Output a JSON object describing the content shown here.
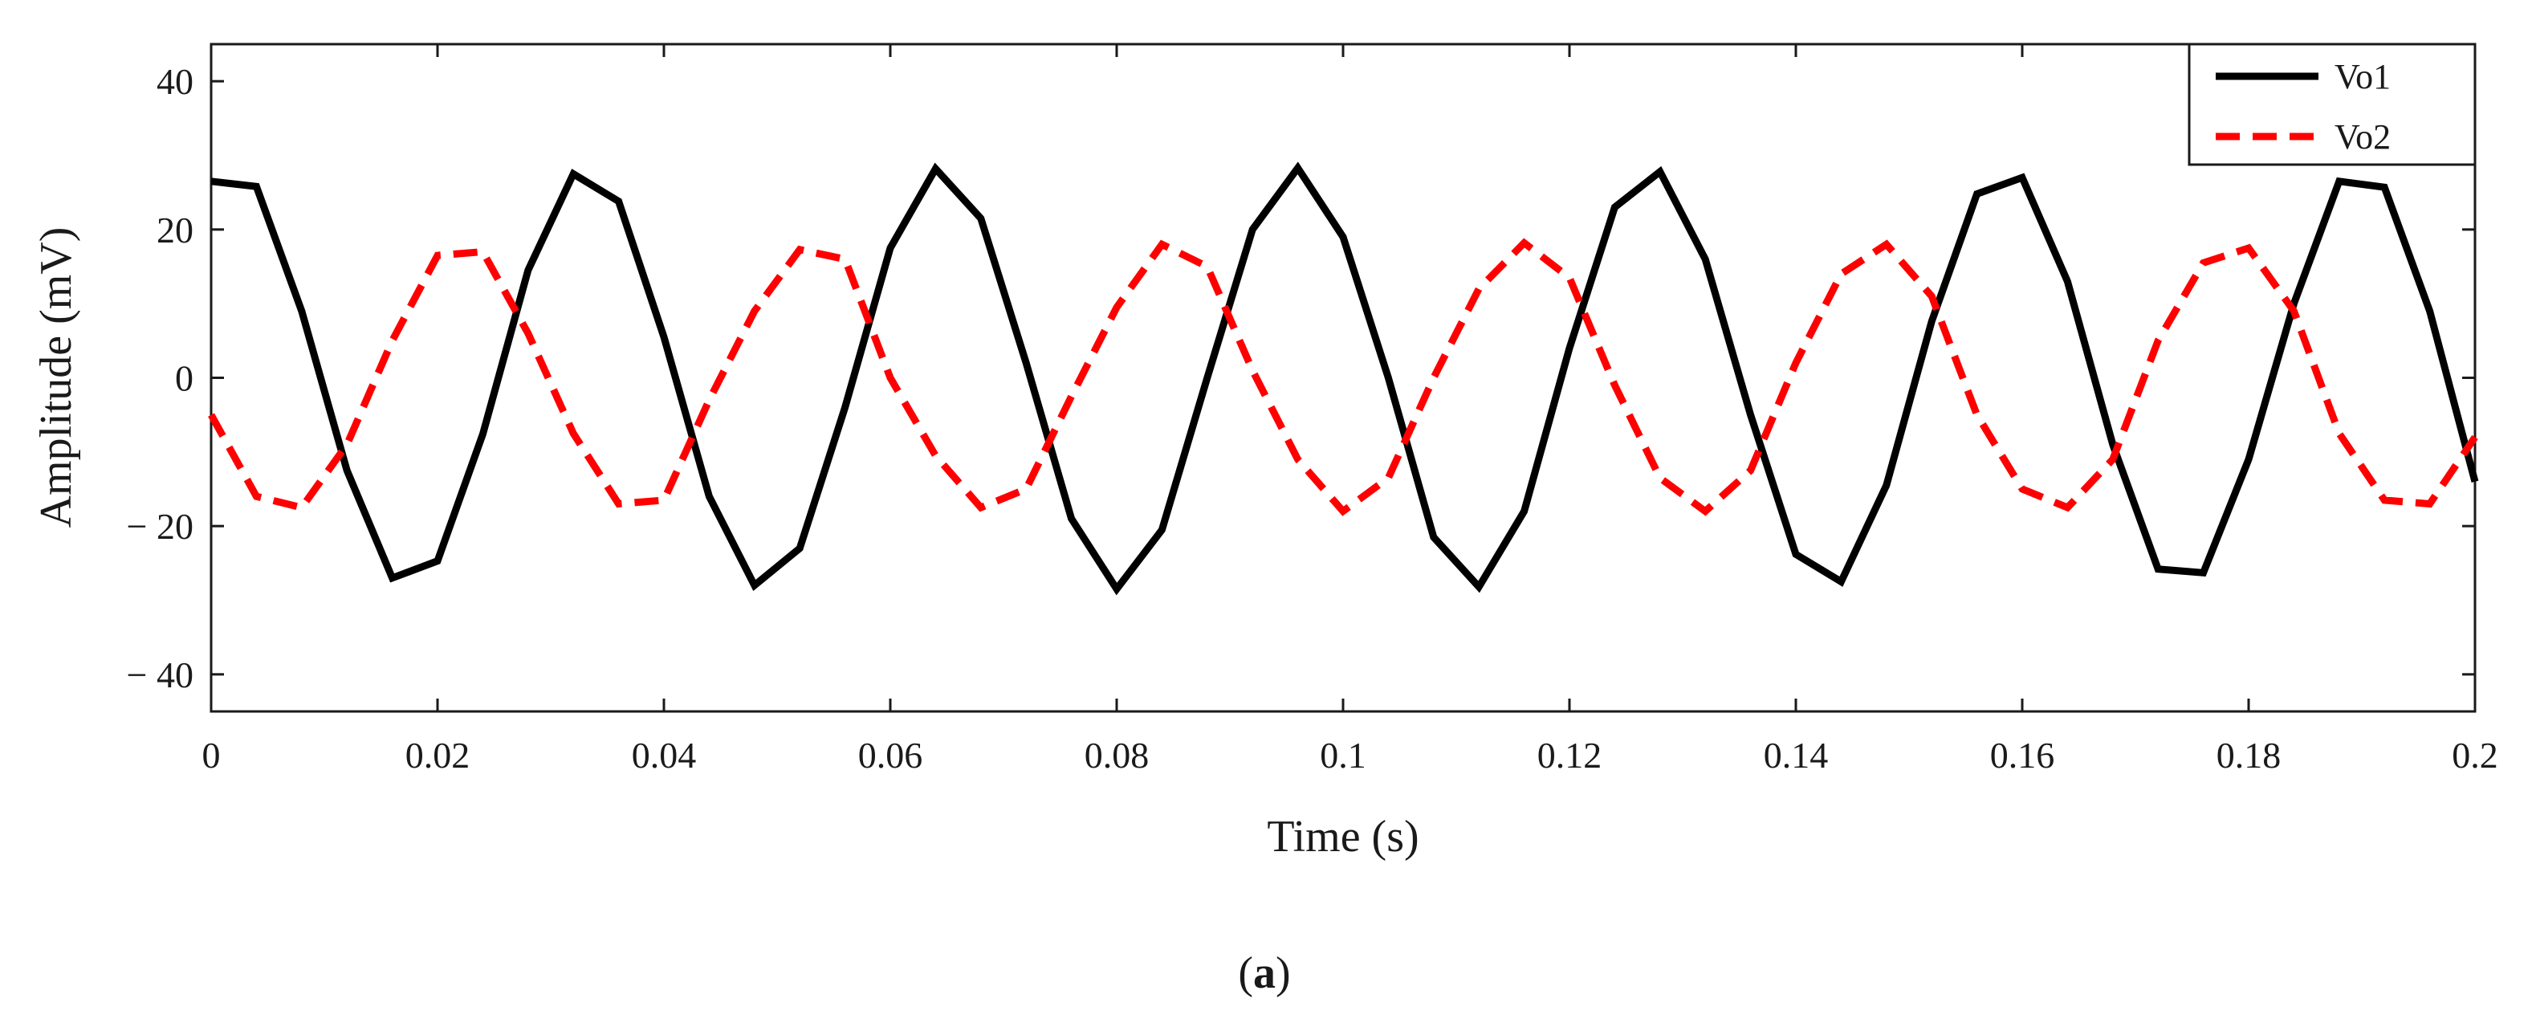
{
  "chart_data": {
    "type": "line",
    "title": "",
    "xlabel": "Time (s)",
    "ylabel": "Amplitude (mV)",
    "caption_letter": "a",
    "caption_open": "(",
    "caption_close": ")",
    "xlim": [
      0,
      0.2
    ],
    "ylim": [
      -45,
      45
    ],
    "xticks": [
      0,
      0.02,
      0.04,
      0.06,
      0.08,
      0.1,
      0.12,
      0.14,
      0.16,
      0.18,
      0.2
    ],
    "xtick_labels": [
      "0",
      "0.02",
      "0.04",
      "0.06",
      "0.08",
      "0.1",
      "0.12",
      "0.14",
      "0.16",
      "0.18",
      "0.2"
    ],
    "yticks": [
      40,
      20,
      0,
      -20,
      -40
    ],
    "ytick_labels": [
      "40",
      "20",
      "0",
      "− 20",
      "− 40"
    ],
    "grid": false,
    "legend_position": "top-right",
    "series": [
      {
        "name": "Vo1",
        "color": "#000000",
        "style": "solid",
        "x": [
          0,
          0.004,
          0.008,
          0.012,
          0.016,
          0.02,
          0.024,
          0.028,
          0.032,
          0.036,
          0.04,
          0.044,
          0.048,
          0.052,
          0.056,
          0.06,
          0.064,
          0.068,
          0.072,
          0.076,
          0.08,
          0.084,
          0.088,
          0.092,
          0.096,
          0.1,
          0.104,
          0.108,
          0.112,
          0.116,
          0.12,
          0.124,
          0.128,
          0.132,
          0.136,
          0.14,
          0.144,
          0.148,
          0.152,
          0.156,
          0.16,
          0.164,
          0.168,
          0.172,
          0.176,
          0.18,
          0.184,
          0.188,
          0.192,
          0.196,
          0.2
        ],
        "values": [
          26.5,
          25.8,
          9,
          -12.5,
          -27,
          -24.7,
          -7.6,
          14.5,
          27.5,
          23.8,
          5.5,
          -16,
          -28,
          -23,
          -4,
          17.5,
          28.2,
          21.5,
          2,
          -19,
          -28.5,
          -20.5,
          0,
          20,
          28.3,
          19,
          0,
          -21.5,
          -28.2,
          -18,
          4,
          23,
          27.8,
          16,
          -5,
          -23.8,
          -27.5,
          -14.5,
          7.6,
          24.8,
          27,
          13,
          -9,
          -25.8,
          -26.3,
          -11,
          10,
          26.5,
          25.7,
          9,
          -14
        ]
      },
      {
        "name": "Vo2",
        "color": "#ff0000",
        "style": "dashed",
        "x": [
          0,
          0.004,
          0.008,
          0.012,
          0.016,
          0.02,
          0.024,
          0.028,
          0.032,
          0.036,
          0.04,
          0.044,
          0.048,
          0.052,
          0.056,
          0.06,
          0.064,
          0.068,
          0.072,
          0.076,
          0.08,
          0.084,
          0.088,
          0.092,
          0.096,
          0.1,
          0.104,
          0.108,
          0.112,
          0.116,
          0.12,
          0.124,
          0.128,
          0.132,
          0.136,
          0.14,
          0.144,
          0.148,
          0.152,
          0.156,
          0.16,
          0.164,
          0.168,
          0.172,
          0.176,
          0.18,
          0.184,
          0.188,
          0.192,
          0.196,
          0.2
        ],
        "values": [
          -5,
          -16,
          -17.5,
          -9,
          5,
          16.5,
          17,
          6,
          -7.5,
          -17,
          -16.5,
          -3,
          9,
          17.3,
          16,
          0,
          -10.5,
          -17.5,
          -15,
          -2.5,
          9.5,
          18,
          15,
          1,
          -11,
          -18,
          -13.5,
          0,
          12,
          18.2,
          13.5,
          -1,
          -13.5,
          -18,
          -12.5,
          2,
          14,
          18,
          11,
          -5,
          -15,
          -17.5,
          -11,
          5,
          15.5,
          17.5,
          9,
          -7.5,
          -16.5,
          -17,
          -8
        ]
      }
    ]
  }
}
